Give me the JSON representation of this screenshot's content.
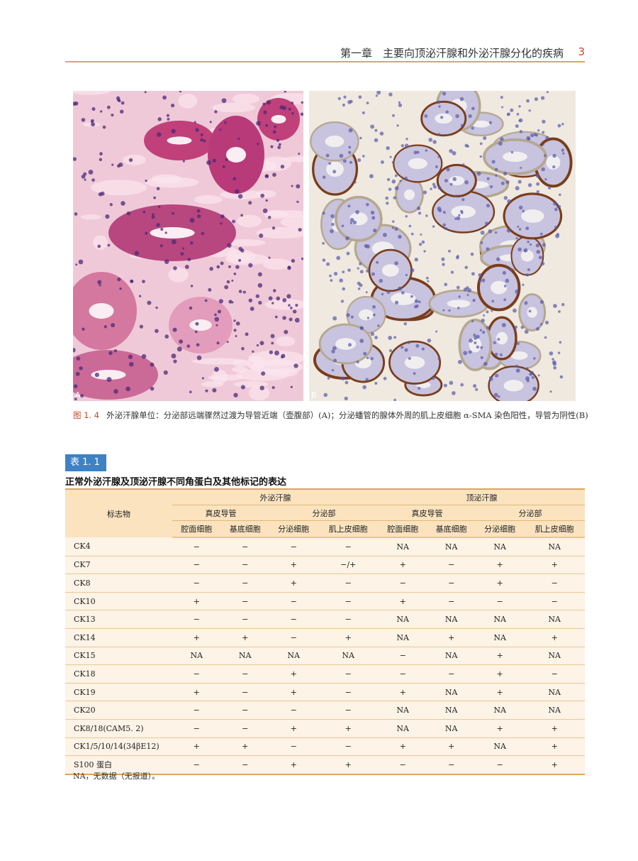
{
  "header": {
    "chapter": "第一章　主要向顶泌汗腺和外泌汗腺分化的疾病",
    "page_number": "3"
  },
  "figure": {
    "panel_a_label": "A",
    "panel_b_label": "B",
    "number": "图 1. 4",
    "caption": "外泌汗腺单位：分泌部远端骤然过渡为导管近端（壶腹部）(A)；分泌蟠管的腺体外周的肌上皮细胞 α-SMA 染色阳性，导管为阴性(B)"
  },
  "table": {
    "badge": "表 1. 1",
    "title": "正常外泌汗腺及顶泌汗腺不同角蛋白及其他标记的表达",
    "marker_header": "标志物",
    "groups": [
      "外泌汗腺",
      "顶泌汗腺"
    ],
    "subgroups": [
      "真皮导管",
      "分泌部",
      "真皮导管",
      "分泌部"
    ],
    "columns": [
      "腔面细胞",
      "基底细胞",
      "分泌细胞",
      "肌上皮细胞",
      "腔面细胞",
      "基底细胞",
      "分泌细胞",
      "肌上皮细胞"
    ],
    "rows": [
      {
        "marker": "CK4",
        "values": [
          "−",
          "−",
          "−",
          "−",
          "NA",
          "NA",
          "NA",
          "NA"
        ]
      },
      {
        "marker": "CK7",
        "values": [
          "−",
          "−",
          "+",
          "−/+",
          "+",
          "−",
          "+",
          "+"
        ]
      },
      {
        "marker": "CK8",
        "values": [
          "−",
          "−",
          "+",
          "−",
          "−",
          "−",
          "+",
          "−"
        ]
      },
      {
        "marker": "CK10",
        "values": [
          "+",
          "−",
          "−",
          "−",
          "+",
          "−",
          "−",
          "−"
        ]
      },
      {
        "marker": "CK13",
        "values": [
          "−",
          "−",
          "−",
          "−",
          "NA",
          "NA",
          "NA",
          "NA"
        ]
      },
      {
        "marker": "CK14",
        "values": [
          "+",
          "+",
          "−",
          "+",
          "NA",
          "+",
          "NA",
          "+"
        ]
      },
      {
        "marker": "CK15",
        "values": [
          "NA",
          "NA",
          "NA",
          "NA",
          "−",
          "NA",
          "+",
          "NA"
        ]
      },
      {
        "marker": "CK18",
        "values": [
          "−",
          "−",
          "+",
          "−",
          "−",
          "−",
          "+",
          "−"
        ]
      },
      {
        "marker": "CK19",
        "values": [
          "+",
          "−",
          "+",
          "−",
          "+",
          "NA",
          "+",
          "NA"
        ]
      },
      {
        "marker": "CK20",
        "values": [
          "−",
          "−",
          "−",
          "−",
          "NA",
          "NA",
          "NA",
          "NA"
        ]
      },
      {
        "marker": "CK8/18(CAM5. 2)",
        "values": [
          "−",
          "−",
          "+",
          "+",
          "NA",
          "NA",
          "+",
          "+"
        ]
      },
      {
        "marker": "CK1/5/10/14(34βE12)",
        "values": [
          "+",
          "+",
          "−",
          "−",
          "+",
          "+",
          "NA",
          "+"
        ]
      },
      {
        "marker": "S100 蛋白",
        "values": [
          "−",
          "−",
          "+",
          "+",
          "−",
          "−",
          "−",
          "+"
        ]
      }
    ],
    "footnote": "NA，无数据（无报道）。"
  },
  "colors": {
    "accent": "#d8a85a",
    "badge": "#3d82c4",
    "caption_number": "#c04a2a",
    "header_fill": "#fbe3c0",
    "row_fill": "#fdf3e6"
  }
}
